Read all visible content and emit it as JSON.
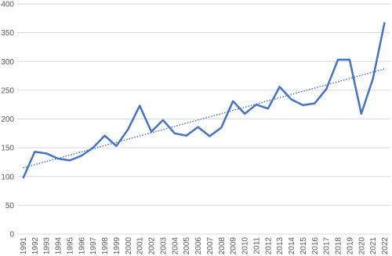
{
  "chart_data": {
    "type": "line",
    "categories": [
      "1991",
      "1992",
      "1993",
      "1994",
      "1995",
      "1996",
      "1997",
      "1998",
      "1999",
      "2000",
      "2001",
      "2002",
      "2003",
      "2004",
      "2005",
      "2006",
      "2007",
      "2008",
      "2009",
      "2010",
      "2011",
      "2012",
      "2013",
      "2014",
      "2015",
      "2016",
      "2017",
      "2018",
      "2019",
      "2020",
      "2021",
      "2022"
    ],
    "series": [
      {
        "color": "#4472c4",
        "values": [
          97,
          143,
          140,
          131,
          128,
          136,
          150,
          171,
          153,
          182,
          223,
          178,
          198,
          175,
          171,
          186,
          170,
          185,
          231,
          209,
          225,
          218,
          256,
          234,
          224,
          227,
          252,
          303,
          303,
          209,
          270,
          368
        ]
      }
    ],
    "trendline": {
      "values": [
        115,
        287
      ],
      "color": "#4472c4",
      "style": "dotted"
    },
    "ylim": [
      0,
      400
    ],
    "yticks": [
      0,
      50,
      100,
      150,
      200,
      250,
      300,
      350,
      400
    ],
    "grid": true
  }
}
